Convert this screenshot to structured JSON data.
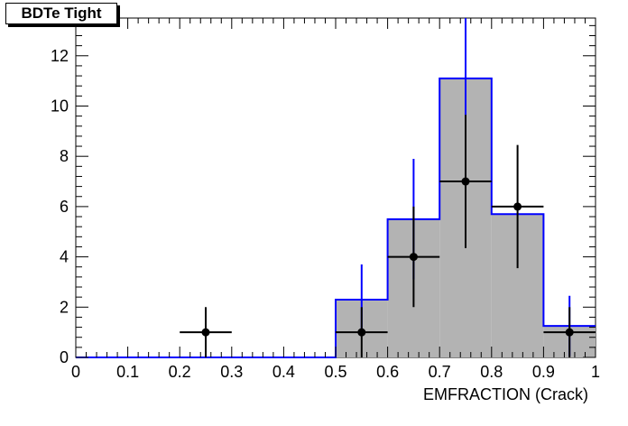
{
  "chart_data": {
    "type": "bar",
    "title": "BDTe Tight",
    "xlabel": "EMFRACTION (Crack)",
    "ylabel": "",
    "xlim": [
      0,
      1
    ],
    "ylim": [
      0,
      13.5
    ],
    "bin_edges": [
      0,
      0.1,
      0.2,
      0.3,
      0.4,
      0.5,
      0.6,
      0.7,
      0.8,
      0.9,
      1.0
    ],
    "x_ticks": [
      "0",
      "0.1",
      "0.2",
      "0.3",
      "0.4",
      "0.5",
      "0.6",
      "0.7",
      "0.8",
      "0.9",
      "1"
    ],
    "y_ticks": [
      "0",
      "2",
      "4",
      "6",
      "8",
      "10",
      "12"
    ],
    "y_tick_values": [
      0,
      2,
      4,
      6,
      8,
      10,
      12
    ],
    "grid": false,
    "series": [
      {
        "kind": "histogram",
        "values": [
          0,
          0,
          0,
          0,
          0,
          2.3,
          5.5,
          11.1,
          5.7,
          1.25
        ],
        "errors": [
          0,
          0,
          0,
          0,
          0,
          1.4,
          2.4,
          3.7,
          0,
          1.2
        ],
        "fill_color": "#b3b3b3",
        "line_color": "#0000ff"
      },
      {
        "kind": "points",
        "x": [
          0.25,
          0.55,
          0.65,
          0.75,
          0.85,
          0.95
        ],
        "y": [
          1,
          1,
          4,
          7,
          6,
          1
        ],
        "yerr": [
          1,
          1,
          2,
          2.65,
          2.45,
          1
        ],
        "xerr": 0.05,
        "color": "#000000"
      }
    ]
  }
}
